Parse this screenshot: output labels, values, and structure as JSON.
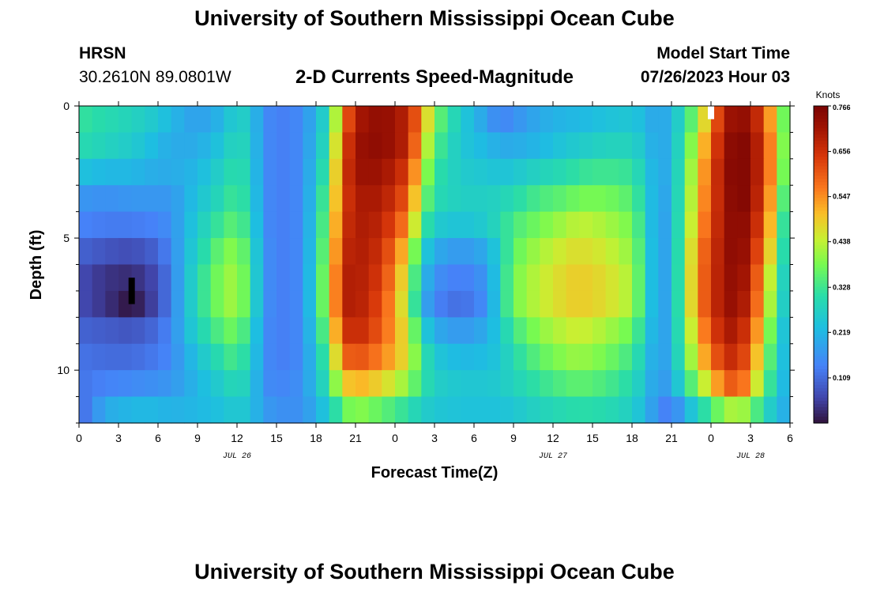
{
  "header": {
    "title": "University of Southern Mississippi Ocean Cube",
    "station": "HRSN",
    "coords": "30.2610N  89.0801W",
    "subtitle": "2-D Currents Speed-Magnitude",
    "start_label": "Model Start Time",
    "start_value": "07/26/2023 Hour 03"
  },
  "footer": {
    "title": "University of Southern Mississippi Ocean Cube"
  },
  "chart_data": {
    "type": "heatmap",
    "title": "2-D Currents Speed-Magnitude",
    "xlabel": "Forecast Time(Z)",
    "ylabel": "Depth (ft)",
    "xlim": [
      0,
      54
    ],
    "ylim": [
      0,
      12
    ],
    "x_tick_values": [
      0,
      3,
      6,
      9,
      12,
      15,
      18,
      21,
      24,
      27,
      30,
      33,
      36,
      39,
      42,
      45,
      48,
      51,
      54
    ],
    "x_tick_labels": [
      "0",
      "3",
      "6",
      "9",
      "12",
      "15",
      "18",
      "21",
      "0",
      "3",
      "6",
      "9",
      "12",
      "15",
      "18",
      "21",
      "0",
      "3",
      "6"
    ],
    "y_tick_values": [
      0,
      5,
      10
    ],
    "y_tick_labels": [
      "0",
      "5",
      "10"
    ],
    "date_labels": [
      {
        "label": "JUL 26",
        "at": 12
      },
      {
        "label": "JUL 27",
        "at": 36
      },
      {
        "label": "JUL 28",
        "at": 51
      }
    ],
    "colorbar": {
      "unit": "Knots",
      "range": [
        0.0,
        0.766
      ],
      "tick_values": [
        0.109,
        0.219,
        0.328,
        0.438,
        0.547,
        0.656,
        0.766
      ],
      "tick_labels": [
        "0.109",
        "0.219",
        "0.328",
        "0.438",
        "0.547",
        "0.656",
        "0.766"
      ]
    },
    "depth_levels": [
      0.5,
      1.5,
      2.5,
      3.5,
      4.5,
      5.5,
      6.5,
      7.5,
      8.5,
      9.5,
      10.5,
      11.5
    ],
    "speed_keyframes": {
      "description": "approximate speed (knots) at selected forecast hours, per depth level row; intermediate hours interpolated",
      "hours": [
        0,
        2,
        4,
        6,
        7,
        9,
        11,
        12,
        13,
        14,
        15,
        17,
        19,
        20,
        21,
        23,
        25,
        26,
        27,
        29,
        31,
        32,
        33,
        35,
        37,
        38,
        40,
        42,
        43,
        44,
        45,
        47,
        49,
        50,
        51,
        52,
        53,
        54
      ],
      "rows": [
        [
          0.32,
          0.3,
          0.28,
          0.25,
          0.22,
          0.18,
          0.22,
          0.28,
          0.25,
          0.16,
          0.13,
          0.15,
          0.3,
          0.55,
          0.7,
          0.74,
          0.68,
          0.55,
          0.38,
          0.26,
          0.18,
          0.14,
          0.16,
          0.2,
          0.22,
          0.22,
          0.24,
          0.25,
          0.22,
          0.18,
          0.22,
          0.4,
          0.7,
          0.74,
          0.72,
          0.62,
          0.45,
          0.3
        ],
        [
          0.3,
          0.28,
          0.26,
          0.22,
          0.2,
          0.2,
          0.25,
          0.3,
          0.26,
          0.16,
          0.13,
          0.15,
          0.32,
          0.6,
          0.72,
          0.74,
          0.68,
          0.5,
          0.35,
          0.25,
          0.22,
          0.2,
          0.2,
          0.22,
          0.25,
          0.26,
          0.28,
          0.28,
          0.24,
          0.18,
          0.22,
          0.45,
          0.72,
          0.76,
          0.74,
          0.64,
          0.48,
          0.3
        ],
        [
          0.24,
          0.22,
          0.22,
          0.2,
          0.2,
          0.22,
          0.28,
          0.32,
          0.27,
          0.16,
          0.13,
          0.15,
          0.35,
          0.62,
          0.72,
          0.72,
          0.64,
          0.45,
          0.32,
          0.26,
          0.25,
          0.24,
          0.25,
          0.28,
          0.3,
          0.32,
          0.33,
          0.32,
          0.26,
          0.18,
          0.22,
          0.48,
          0.73,
          0.76,
          0.74,
          0.64,
          0.48,
          0.28
        ],
        [
          0.17,
          0.16,
          0.17,
          0.17,
          0.17,
          0.24,
          0.3,
          0.34,
          0.28,
          0.16,
          0.13,
          0.15,
          0.38,
          0.62,
          0.7,
          0.7,
          0.6,
          0.4,
          0.3,
          0.27,
          0.27,
          0.28,
          0.3,
          0.34,
          0.36,
          0.38,
          0.38,
          0.35,
          0.28,
          0.17,
          0.22,
          0.5,
          0.72,
          0.76,
          0.74,
          0.62,
          0.45,
          0.25
        ],
        [
          0.14,
          0.13,
          0.13,
          0.14,
          0.16,
          0.26,
          0.34,
          0.36,
          0.3,
          0.16,
          0.13,
          0.15,
          0.4,
          0.64,
          0.7,
          0.68,
          0.55,
          0.35,
          0.26,
          0.24,
          0.26,
          0.3,
          0.34,
          0.38,
          0.42,
          0.44,
          0.42,
          0.38,
          0.29,
          0.16,
          0.22,
          0.52,
          0.72,
          0.75,
          0.72,
          0.6,
          0.42,
          0.22
        ],
        [
          0.1,
          0.08,
          0.07,
          0.1,
          0.15,
          0.28,
          0.38,
          0.4,
          0.32,
          0.17,
          0.13,
          0.15,
          0.42,
          0.66,
          0.7,
          0.66,
          0.48,
          0.28,
          0.2,
          0.17,
          0.2,
          0.28,
          0.36,
          0.42,
          0.46,
          0.47,
          0.45,
          0.4,
          0.3,
          0.16,
          0.22,
          0.55,
          0.72,
          0.75,
          0.7,
          0.56,
          0.4,
          0.21
        ],
        [
          0.07,
          0.04,
          0.03,
          0.07,
          0.14,
          0.3,
          0.4,
          0.42,
          0.33,
          0.17,
          0.13,
          0.15,
          0.44,
          0.68,
          0.7,
          0.64,
          0.44,
          0.24,
          0.16,
          0.13,
          0.17,
          0.28,
          0.38,
          0.44,
          0.48,
          0.49,
          0.47,
          0.42,
          0.3,
          0.16,
          0.22,
          0.56,
          0.72,
          0.74,
          0.68,
          0.52,
          0.36,
          0.2
        ],
        [
          0.07,
          0.04,
          0.0,
          0.07,
          0.14,
          0.3,
          0.4,
          0.42,
          0.33,
          0.17,
          0.13,
          0.15,
          0.44,
          0.68,
          0.7,
          0.62,
          0.42,
          0.22,
          0.14,
          0.11,
          0.16,
          0.28,
          0.38,
          0.44,
          0.48,
          0.49,
          0.47,
          0.42,
          0.3,
          0.16,
          0.22,
          0.56,
          0.72,
          0.73,
          0.66,
          0.5,
          0.34,
          0.2
        ],
        [
          0.1,
          0.09,
          0.08,
          0.11,
          0.15,
          0.28,
          0.36,
          0.38,
          0.3,
          0.16,
          0.13,
          0.15,
          0.4,
          0.64,
          0.68,
          0.6,
          0.45,
          0.28,
          0.2,
          0.17,
          0.2,
          0.26,
          0.33,
          0.4,
          0.44,
          0.45,
          0.42,
          0.37,
          0.28,
          0.16,
          0.22,
          0.52,
          0.7,
          0.7,
          0.62,
          0.46,
          0.3,
          0.19
        ],
        [
          0.12,
          0.11,
          0.11,
          0.13,
          0.15,
          0.24,
          0.32,
          0.34,
          0.28,
          0.16,
          0.13,
          0.15,
          0.36,
          0.58,
          0.62,
          0.56,
          0.46,
          0.33,
          0.25,
          0.22,
          0.23,
          0.25,
          0.3,
          0.36,
          0.4,
          0.41,
          0.38,
          0.33,
          0.26,
          0.16,
          0.22,
          0.48,
          0.66,
          0.67,
          0.58,
          0.42,
          0.28,
          0.19
        ],
        [
          0.12,
          0.14,
          0.15,
          0.16,
          0.17,
          0.22,
          0.27,
          0.3,
          0.26,
          0.16,
          0.14,
          0.16,
          0.32,
          0.48,
          0.52,
          0.48,
          0.4,
          0.32,
          0.27,
          0.25,
          0.25,
          0.26,
          0.28,
          0.32,
          0.35,
          0.36,
          0.34,
          0.3,
          0.24,
          0.16,
          0.2,
          0.4,
          0.58,
          0.62,
          0.52,
          0.38,
          0.26,
          0.19
        ],
        [
          0.1,
          0.2,
          0.22,
          0.22,
          0.21,
          0.22,
          0.24,
          0.26,
          0.24,
          0.18,
          0.16,
          0.16,
          0.26,
          0.36,
          0.4,
          0.36,
          0.31,
          0.27,
          0.25,
          0.24,
          0.24,
          0.24,
          0.25,
          0.28,
          0.3,
          0.31,
          0.3,
          0.27,
          0.22,
          0.15,
          0.13,
          0.28,
          0.4,
          0.44,
          0.38,
          0.3,
          0.23,
          0.19
        ]
      ]
    },
    "markers": [
      {
        "type": "black-bar",
        "x": 4.0,
        "depth_from": 6.5,
        "depth_to": 7.5
      },
      {
        "type": "white-bar",
        "x": 48.0,
        "depth_from": 0.0,
        "depth_to": 0.5
      }
    ]
  }
}
